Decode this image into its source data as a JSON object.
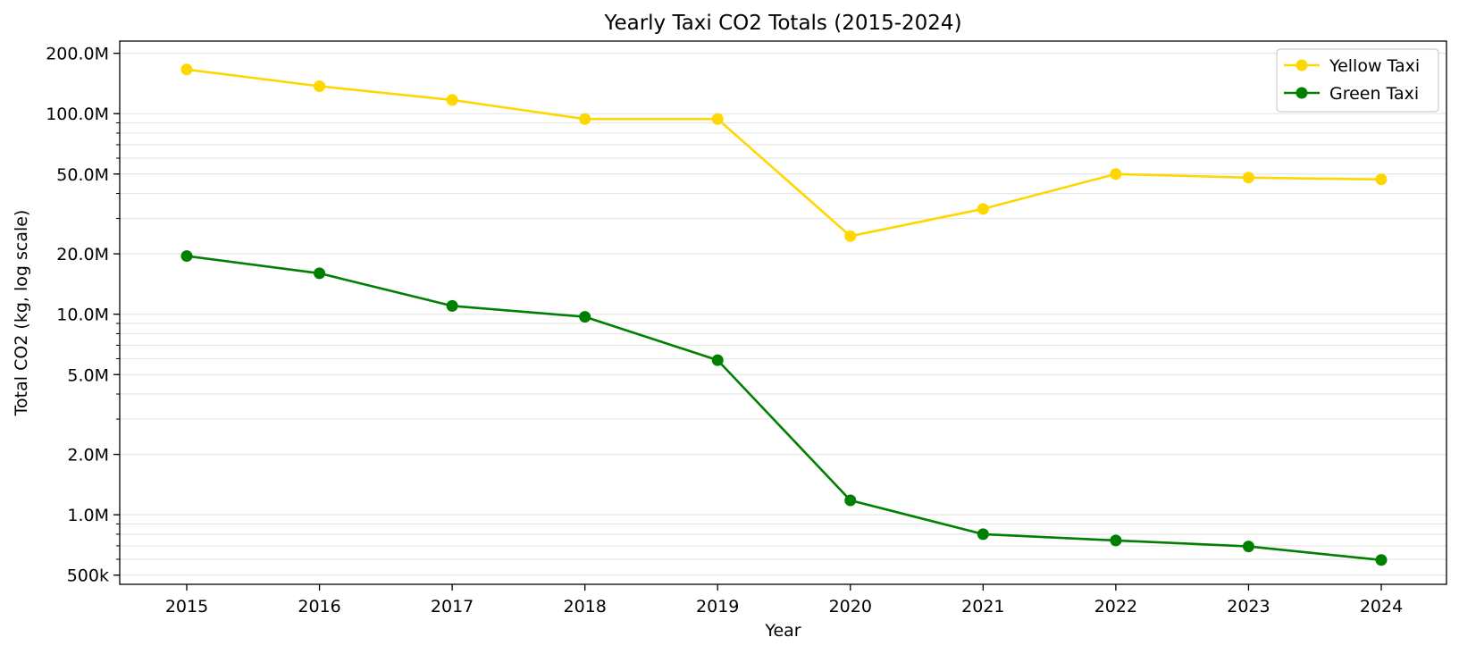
{
  "chart_data": {
    "type": "line",
    "title": "Yearly Taxi CO2 Totals (2015-2024)",
    "xlabel": "Year",
    "ylabel": "Total CO2 (kg, log scale)",
    "yscale": "log",
    "ylim": [
      450000,
      230000000
    ],
    "x": [
      2015,
      2016,
      2017,
      2018,
      2019,
      2020,
      2021,
      2022,
      2023,
      2024
    ],
    "x_tick_labels": [
      "2015",
      "2016",
      "2017",
      "2018",
      "2019",
      "2020",
      "2021",
      "2022",
      "2023",
      "2024"
    ],
    "y_ticks": [
      {
        "value": 500000,
        "label": "500k"
      },
      {
        "value": 1000000,
        "label": "1.0M"
      },
      {
        "value": 2000000,
        "label": "2.0M"
      },
      {
        "value": 5000000,
        "label": "5.0M"
      },
      {
        "value": 10000000,
        "label": "10.0M"
      },
      {
        "value": 20000000,
        "label": "20.0M"
      },
      {
        "value": 50000000,
        "label": "50.0M"
      },
      {
        "value": 100000000,
        "label": "100.0M"
      },
      {
        "value": 200000000,
        "label": "200.0M"
      }
    ],
    "grid": "y-minor",
    "legend_position": "top-right",
    "series": [
      {
        "name": "Yellow Taxi",
        "color": "#FFD700",
        "values": [
          166000000,
          137000000,
          117000000,
          94000000,
          94000000,
          24500000,
          33500000,
          50000000,
          48000000,
          47000000
        ]
      },
      {
        "name": "Green Taxi",
        "color": "#008000",
        "values": [
          19500000,
          16000000,
          11000000,
          9700000,
          5900000,
          1180000,
          800000,
          745000,
          695000,
          595000
        ]
      }
    ]
  }
}
